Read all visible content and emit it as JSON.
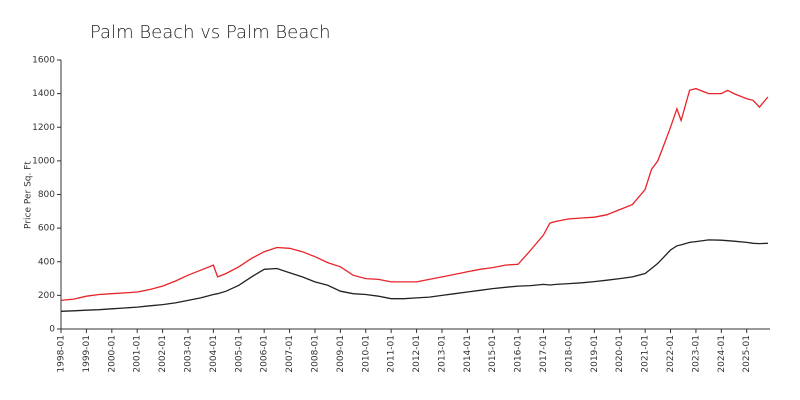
{
  "chart_data": {
    "type": "line",
    "title": "Palm Beach vs Palm Beach",
    "y_label": "Price Per Sq. Ft",
    "x": [
      "1998-01",
      "1998-07",
      "1999-01",
      "1999-07",
      "2000-01",
      "2000-07",
      "2001-01",
      "2001-07",
      "2002-01",
      "2002-07",
      "2003-01",
      "2003-07",
      "2004-01",
      "2004-03",
      "2004-07",
      "2005-01",
      "2005-07",
      "2006-01",
      "2006-07",
      "2007-01",
      "2007-07",
      "2008-01",
      "2008-07",
      "2009-01",
      "2009-07",
      "2010-01",
      "2010-07",
      "2011-01",
      "2011-07",
      "2012-01",
      "2012-07",
      "2013-01",
      "2013-07",
      "2014-01",
      "2014-07",
      "2015-01",
      "2015-07",
      "2016-01",
      "2016-07",
      "2017-01",
      "2017-04",
      "2017-07",
      "2018-01",
      "2018-07",
      "2019-01",
      "2019-07",
      "2020-01",
      "2020-07",
      "2021-01",
      "2021-04",
      "2021-07",
      "2021-10",
      "2022-01",
      "2022-04",
      "2022-06",
      "2022-10",
      "2023-01",
      "2023-07",
      "2024-01",
      "2024-04",
      "2024-07",
      "2025-01",
      "2025-04",
      "2025-07",
      "2025-11"
    ],
    "series": [
      {
        "color": "#e8232a",
        "values": [
          170,
          178,
          195,
          205,
          210,
          215,
          220,
          235,
          255,
          285,
          320,
          350,
          380,
          310,
          330,
          370,
          420,
          460,
          485,
          480,
          460,
          430,
          395,
          370,
          320,
          300,
          295,
          280,
          280,
          280,
          295,
          310,
          325,
          340,
          355,
          365,
          380,
          385,
          470,
          560,
          630,
          640,
          655,
          660,
          665,
          680,
          710,
          740,
          830,
          950,
          1000,
          1100,
          1200,
          1310,
          1240,
          1420,
          1430,
          1400,
          1400,
          1420,
          1400,
          1370,
          1360,
          1320,
          1380
        ]
      },
      {
        "color": "#222222",
        "values": [
          105,
          108,
          112,
          115,
          120,
          125,
          130,
          138,
          145,
          155,
          170,
          185,
          205,
          210,
          225,
          260,
          310,
          355,
          360,
          335,
          310,
          280,
          260,
          225,
          210,
          205,
          195,
          180,
          180,
          185,
          190,
          200,
          210,
          220,
          230,
          240,
          248,
          255,
          258,
          265,
          262,
          265,
          270,
          275,
          282,
          290,
          300,
          310,
          330,
          360,
          390,
          430,
          470,
          495,
          500,
          515,
          520,
          530,
          528,
          525,
          522,
          515,
          510,
          508,
          510
        ]
      }
    ],
    "xlim": [
      "1998-01",
      "2025-12"
    ],
    "xticks": [
      "1998-01",
      "1999-01",
      "2000-01",
      "2001-01",
      "2002-01",
      "2003-01",
      "2004-01",
      "2005-01",
      "2006-01",
      "2007-01",
      "2008-01",
      "2009-01",
      "2010-01",
      "2011-01",
      "2012-01",
      "2013-01",
      "2014-01",
      "2015-01",
      "2016-01",
      "2017-01",
      "2018-01",
      "2019-01",
      "2020-01",
      "2021-01",
      "2022-01",
      "2023-01",
      "2024-01",
      "2025-01"
    ],
    "ylim": [
      0,
      1600
    ],
    "yticks": [
      0,
      200,
      400,
      600,
      800,
      1000,
      1200,
      1400,
      1600
    ]
  }
}
